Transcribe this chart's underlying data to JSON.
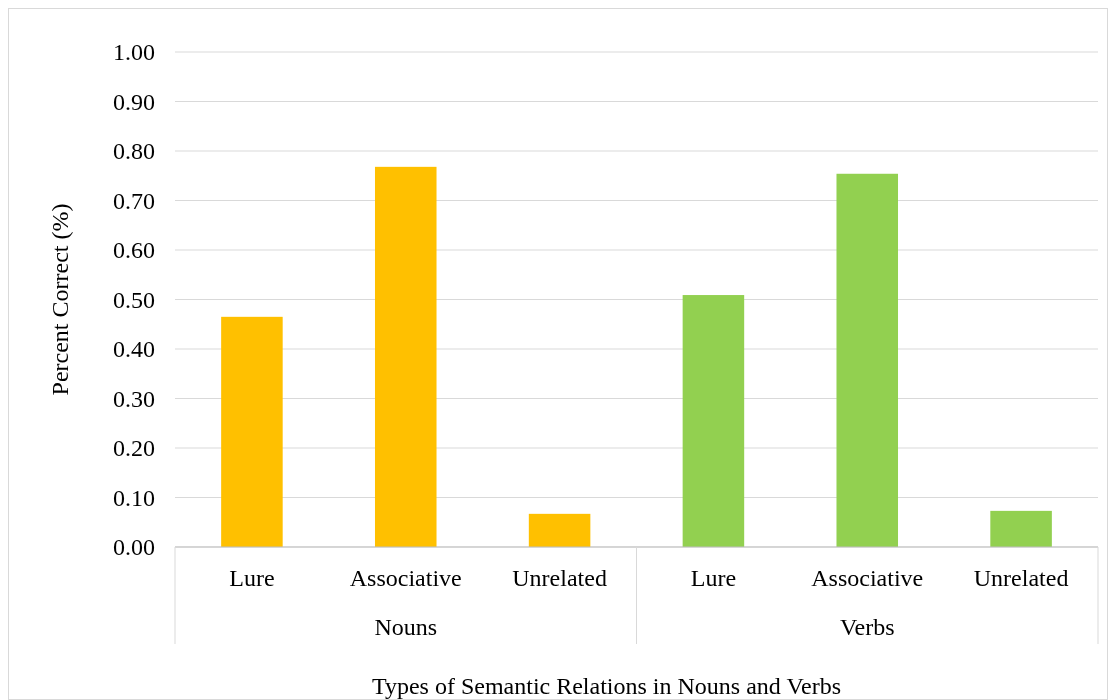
{
  "chart_data": {
    "type": "bar",
    "xlabel": "Types of Semantic Relations in Nouns and Verbs",
    "ylabel": "Percent Correct (%)",
    "categories": [
      "Lure",
      "Associative",
      "Unrelated",
      "Lure",
      "Associative",
      "Unrelated"
    ],
    "series": [
      {
        "name": "Nouns",
        "color": "#ffc000",
        "values": [
          0.465,
          0.768,
          0.067,
          null,
          null,
          null
        ]
      },
      {
        "name": "Verbs",
        "color": "#92d050",
        "values": [
          null,
          null,
          null,
          0.509,
          0.754,
          0.073
        ]
      }
    ],
    "ylim": [
      0,
      1
    ],
    "yticks": [
      {
        "value": 0,
        "label": "0.00"
      },
      {
        "value": 0.1,
        "label": "0.10"
      },
      {
        "value": 0.2,
        "label": "0.20"
      },
      {
        "value": 0.3,
        "label": "0.30"
      },
      {
        "value": 0.4,
        "label": "0.40"
      },
      {
        "value": 0.5,
        "label": "0.50"
      },
      {
        "value": 0.6,
        "label": "0.60"
      },
      {
        "value": 0.7,
        "label": "0.70"
      },
      {
        "value": 0.8,
        "label": "0.80"
      },
      {
        "value": 0.9,
        "label": "0.90"
      },
      {
        "value": 1,
        "label": "1.00"
      }
    ],
    "grid": "y"
  }
}
